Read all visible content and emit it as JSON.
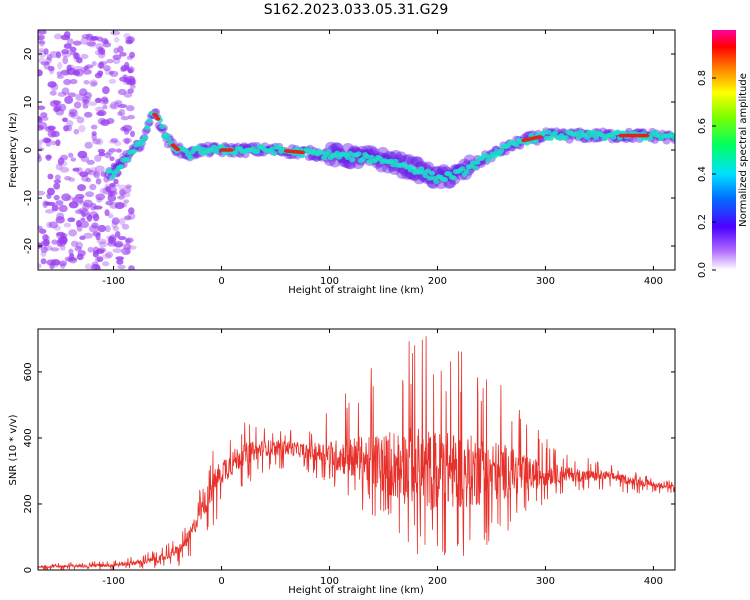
{
  "title": "S162.2023.033.05.31.G29",
  "colors": {
    "snr_line": "#e8302a",
    "ridge_high": "#e0231e",
    "ridge_mid": "#19e0c8",
    "ridge_low": "#6a1fe8",
    "noise": "#9a3ff0"
  },
  "chart_data": [
    {
      "type": "heatmap",
      "xlabel": "Height of straight line (km)",
      "ylabel": "Frequency (Hz)",
      "xlim": [
        -170,
        420
      ],
      "ylim": [
        -25,
        25
      ],
      "xticks": [
        -100,
        0,
        100,
        200,
        300,
        400
      ],
      "yticks": [
        -20,
        -10,
        0,
        10,
        20
      ],
      "colorbar": {
        "label": "Normalized spectral amplitude",
        "ticks": [
          "0.0",
          "0.2",
          "0.4",
          "0.6",
          "0.8"
        ],
        "tick_values": [
          0.0,
          0.2,
          0.4,
          0.6,
          0.8
        ],
        "range": [
          0,
          1
        ],
        "colormap": "gist_rainbow (violet to red)"
      },
      "dominant_frequency_ridge": {
        "x": [
          -100,
          -90,
          -80,
          -70,
          -65,
          -60,
          -50,
          -40,
          -30,
          -20,
          0,
          50,
          100,
          150,
          180,
          200,
          220,
          250,
          280,
          300,
          350,
          400,
          420
        ],
        "y": [
          -5,
          -2,
          0,
          3,
          8,
          7,
          2,
          0,
          -1,
          0,
          0,
          0,
          -1,
          -2,
          -4,
          -6,
          -5,
          -1,
          2,
          3,
          3,
          3,
          2.5
        ]
      },
      "noise_region_x": [
        -170,
        -90
      ]
    },
    {
      "type": "line",
      "xlabel": "Height of straight line (km)",
      "ylabel": "SNR (10 * v/v)",
      "xlim": [
        -170,
        420
      ],
      "ylim": [
        0,
        730
      ],
      "xticks": [
        -100,
        0,
        100,
        200,
        300,
        400
      ],
      "yticks": [
        0,
        200,
        400,
        600
      ],
      "series": [
        {
          "envelope_x": [
            -170,
            -100,
            -60,
            -40,
            -30,
            -20,
            -10,
            0,
            20,
            40,
            60,
            80,
            100,
            120,
            140,
            160,
            180,
            200,
            220,
            240,
            260,
            280,
            300,
            320,
            340,
            360,
            380,
            400,
            420
          ],
          "mean": [
            10,
            15,
            30,
            60,
            100,
            170,
            240,
            300,
            350,
            370,
            370,
            360,
            350,
            340,
            330,
            320,
            310,
            300,
            300,
            300,
            300,
            290,
            290,
            290,
            285,
            285,
            270,
            260,
            250
          ],
          "max": [
            20,
            30,
            60,
            100,
            150,
            250,
            350,
            420,
            450,
            440,
            430,
            420,
            500,
            560,
            620,
            700,
            730,
            710,
            680,
            650,
            600,
            480,
            400,
            360,
            340,
            320,
            300,
            280,
            270
          ],
          "min": [
            0,
            0,
            5,
            10,
            30,
            60,
            120,
            170,
            250,
            300,
            300,
            290,
            260,
            200,
            150,
            80,
            20,
            10,
            20,
            50,
            100,
            150,
            200,
            230,
            240,
            240,
            230,
            230,
            230
          ]
        }
      ]
    }
  ]
}
